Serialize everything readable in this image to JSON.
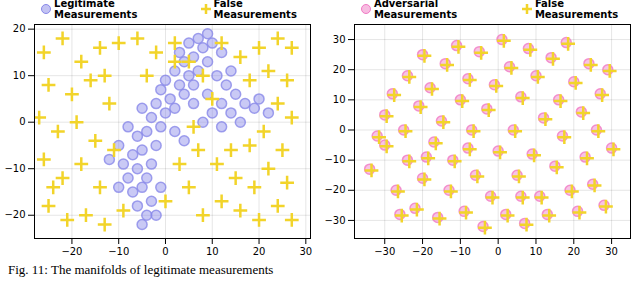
{
  "chart_data": [
    {
      "type": "scatter",
      "grid": true,
      "legend": "upper left",
      "xlim": [
        -28,
        31
      ],
      "xticks": [
        -20,
        -10,
        0,
        10,
        20,
        30
      ],
      "ylim": [
        -25,
        21
      ],
      "yticks": [
        -20,
        -10,
        0,
        10,
        20
      ],
      "series": [
        {
          "name": "Legitimate Measurements",
          "color": "#8888e8",
          "marker": "circle",
          "values": [
            [
              -5,
              -22
            ],
            [
              -4,
              -20
            ],
            [
              -6,
              -18
            ],
            [
              -3,
              -17
            ],
            [
              -7,
              -15
            ],
            [
              -5,
              -14
            ],
            [
              -8,
              -12
            ],
            [
              -4,
              -12
            ],
            [
              -6,
              -10
            ],
            [
              -9,
              -9
            ],
            [
              -3,
              -9
            ],
            [
              -7,
              -7
            ],
            [
              -5,
              -6
            ],
            [
              -10,
              -5
            ],
            [
              -2,
              -5
            ],
            [
              -6,
              -3
            ],
            [
              -4,
              -2
            ],
            [
              -8,
              -1
            ],
            [
              -1,
              -1
            ],
            [
              -3,
              1
            ],
            [
              0,
              2
            ],
            [
              -5,
              3
            ],
            [
              2,
              3
            ],
            [
              -2,
              4
            ],
            [
              1,
              5
            ],
            [
              4,
              6
            ],
            [
              -1,
              7
            ],
            [
              3,
              8
            ],
            [
              6,
              8
            ],
            [
              0,
              9
            ],
            [
              5,
              10
            ],
            [
              2,
              11
            ],
            [
              7,
              11
            ],
            [
              4,
              13
            ],
            [
              9,
              13
            ],
            [
              6,
              14
            ],
            [
              3,
              15
            ],
            [
              8,
              16
            ],
            [
              5,
              17
            ],
            [
              10,
              17
            ],
            [
              7,
              18
            ],
            [
              9,
              19
            ],
            [
              12,
              15
            ],
            [
              11,
              10
            ],
            [
              13,
              8
            ],
            [
              15,
              6
            ],
            [
              12,
              4
            ],
            [
              17,
              4
            ],
            [
              14,
              2
            ],
            [
              19,
              3
            ],
            [
              10,
              2
            ],
            [
              16,
              0
            ],
            [
              8,
              0
            ],
            [
              12,
              -1
            ],
            [
              20,
              5
            ],
            [
              22,
              2
            ],
            [
              -12,
              -8
            ],
            [
              -10,
              -14
            ],
            [
              -2,
              -20
            ],
            [
              2,
              -2
            ],
            [
              6,
              4
            ],
            [
              9,
              6
            ],
            [
              14,
              11
            ],
            [
              4,
              -4
            ],
            [
              -1,
              -14
            ]
          ]
        },
        {
          "name": "False Measurements",
          "color": "#f2d42a",
          "marker": "plus",
          "values": [
            [
              -26,
              15
            ],
            [
              -22,
              18
            ],
            [
              -18,
              13
            ],
            [
              -14,
              16
            ],
            [
              -10,
              17
            ],
            [
              -25,
              8
            ],
            [
              -20,
              6
            ],
            [
              -16,
              9
            ],
            [
              -12,
              4
            ],
            [
              -27,
              1
            ],
            [
              -23,
              -2
            ],
            [
              -19,
              0
            ],
            [
              -15,
              -4
            ],
            [
              -26,
              -8
            ],
            [
              -22,
              -12
            ],
            [
              -18,
              -9
            ],
            [
              -14,
              -14
            ],
            [
              -25,
              -18
            ],
            [
              -21,
              -21
            ],
            [
              -17,
              -20
            ],
            [
              -13,
              -22
            ],
            [
              -9,
              -19
            ],
            [
              -24,
              -14
            ],
            [
              -11,
              -6
            ],
            [
              -13,
              10
            ],
            [
              -6,
              18
            ],
            [
              -2,
              15
            ],
            [
              2,
              17
            ],
            [
              5,
              13
            ],
            [
              8,
              10
            ],
            [
              12,
              17
            ],
            [
              16,
              14
            ],
            [
              20,
              16
            ],
            [
              24,
              18
            ],
            [
              27,
              16
            ],
            [
              22,
              11
            ],
            [
              26,
              9
            ],
            [
              18,
              9
            ],
            [
              24,
              4
            ],
            [
              27,
              1
            ],
            [
              21,
              -2
            ],
            [
              25,
              -6
            ],
            [
              18,
              -5
            ],
            [
              14,
              -6
            ],
            [
              22,
              -10
            ],
            [
              26,
              -13
            ],
            [
              19,
              -14
            ],
            [
              15,
              -12
            ],
            [
              11,
              -9
            ],
            [
              24,
              -18
            ],
            [
              27,
              -21
            ],
            [
              20,
              -21
            ],
            [
              16,
              -19
            ],
            [
              12,
              -17
            ],
            [
              8,
              -20
            ],
            [
              5,
              -14
            ],
            [
              3,
              -9
            ],
            [
              0,
              -17
            ],
            [
              7,
              -6
            ],
            [
              -4,
              10
            ],
            [
              2,
              13
            ],
            [
              10,
              5
            ],
            [
              6,
              -1
            ]
          ]
        }
      ]
    },
    {
      "type": "scatter",
      "grid": true,
      "legend": "upper left",
      "xlim": [
        -38,
        35
      ],
      "xticks": [
        -30,
        -20,
        -10,
        0,
        10,
        20,
        30
      ],
      "ylim": [
        -36,
        35
      ],
      "yticks": [
        -30,
        -20,
        -10,
        0,
        10,
        20,
        30
      ],
      "series": [
        {
          "name": "Adversarial Measurements",
          "color": "#f07ac4",
          "marker": "circle",
          "values": [
            [
              -34,
              -13
            ],
            [
              -30,
              5
            ],
            [
              -30,
              -5
            ],
            [
              -28,
              12
            ],
            [
              -27,
              -20
            ],
            [
              -25,
              0
            ],
            [
              -24,
              18
            ],
            [
              -24,
              -10
            ],
            [
              -22,
              -26
            ],
            [
              -21,
              8
            ],
            [
              -20,
              25
            ],
            [
              -20,
              -16
            ],
            [
              -18,
              14
            ],
            [
              -17,
              -4
            ],
            [
              -16,
              -29
            ],
            [
              -15,
              3
            ],
            [
              -14,
              22
            ],
            [
              -13,
              -20
            ],
            [
              -12,
              -10
            ],
            [
              -11,
              28
            ],
            [
              -10,
              10
            ],
            [
              -9,
              -27
            ],
            [
              -8,
              17
            ],
            [
              -7,
              0
            ],
            [
              -6,
              -15
            ],
            [
              -5,
              26
            ],
            [
              -4,
              -32
            ],
            [
              -3,
              7
            ],
            [
              -2,
              -22
            ],
            [
              -1,
              15
            ],
            [
              0,
              -7
            ],
            [
              1,
              30
            ],
            [
              2,
              -28
            ],
            [
              3,
              21
            ],
            [
              4,
              0
            ],
            [
              5,
              -15
            ],
            [
              6,
              11
            ],
            [
              7,
              -31
            ],
            [
              8,
              27
            ],
            [
              9,
              -8
            ],
            [
              10,
              18
            ],
            [
              11,
              -22
            ],
            [
              12,
              4
            ],
            [
              13,
              -28
            ],
            [
              14,
              24
            ],
            [
              15,
              -12
            ],
            [
              16,
              10
            ],
            [
              17,
              -2
            ],
            [
              18,
              29
            ],
            [
              19,
              -20
            ],
            [
              20,
              16
            ],
            [
              21,
              -27
            ],
            [
              22,
              6
            ],
            [
              23,
              -9
            ],
            [
              24,
              22
            ],
            [
              25,
              -18
            ],
            [
              26,
              0
            ],
            [
              27,
              12
            ],
            [
              28,
              -25
            ],
            [
              29,
              20
            ],
            [
              30,
              -6
            ],
            [
              -26,
              -28
            ],
            [
              -32,
              -2
            ],
            [
              -8,
              -6
            ],
            [
              6,
              -22
            ],
            [
              -19,
              -9
            ]
          ]
        },
        {
          "name": "False Measurements",
          "color": "#f2d42a",
          "marker": "plus",
          "values": [
            [
              -33.5,
              -13.4
            ],
            [
              -29.5,
              4.6
            ],
            [
              -29.5,
              -5.4
            ],
            [
              -27.5,
              11.6
            ],
            [
              -26.5,
              -20.4
            ],
            [
              -24.5,
              -0.4
            ],
            [
              -23.5,
              17.6
            ],
            [
              -23.5,
              -10.4
            ],
            [
              -21.5,
              -26.4
            ],
            [
              -20.5,
              7.6
            ],
            [
              -19.5,
              24.6
            ],
            [
              -19.5,
              -16.4
            ],
            [
              -17.5,
              13.6
            ],
            [
              -16.5,
              -4.4
            ],
            [
              -15.5,
              -29.4
            ],
            [
              -14.5,
              2.6
            ],
            [
              -13.5,
              21.6
            ],
            [
              -12.5,
              -20.4
            ],
            [
              -11.5,
              -10.4
            ],
            [
              -10.5,
              27.6
            ],
            [
              -9.5,
              9.6
            ],
            [
              -8.5,
              -27.4
            ],
            [
              -7.5,
              16.6
            ],
            [
              -6.5,
              -0.4
            ],
            [
              -5.5,
              -15.4
            ],
            [
              -4.5,
              25.6
            ],
            [
              -3.5,
              -32.4
            ],
            [
              -2.5,
              6.6
            ],
            [
              -1.5,
              -22.4
            ],
            [
              -0.5,
              14.6
            ],
            [
              0.5,
              -7.4
            ],
            [
              1.5,
              29.6
            ],
            [
              2.5,
              -28.4
            ],
            [
              3.5,
              20.6
            ],
            [
              4.5,
              -0.4
            ],
            [
              5.5,
              -15.4
            ],
            [
              6.5,
              10.6
            ],
            [
              7.5,
              -31.4
            ],
            [
              8.5,
              26.6
            ],
            [
              9.5,
              -8.4
            ],
            [
              10.5,
              17.6
            ],
            [
              11.5,
              -22.4
            ],
            [
              12.5,
              3.6
            ],
            [
              13.5,
              -28.4
            ],
            [
              14.5,
              23.6
            ],
            [
              15.5,
              -12.4
            ],
            [
              16.5,
              9.6
            ],
            [
              17.5,
              -2.4
            ],
            [
              18.5,
              28.6
            ],
            [
              19.5,
              -20.4
            ],
            [
              20.5,
              15.6
            ],
            [
              21.5,
              -27.4
            ],
            [
              22.5,
              5.6
            ],
            [
              23.5,
              -9.4
            ],
            [
              24.5,
              21.6
            ],
            [
              25.5,
              -18.4
            ],
            [
              26.5,
              -0.4
            ],
            [
              27.5,
              11.6
            ],
            [
              28.5,
              -25.4
            ],
            [
              29.5,
              19.6
            ],
            [
              30.5,
              -6.4
            ],
            [
              -25.5,
              -28.4
            ],
            [
              -31.5,
              -2.4
            ],
            [
              -7.5,
              -6.4
            ],
            [
              6.5,
              -22.4
            ],
            [
              -18.5,
              -9.4
            ]
          ]
        }
      ]
    }
  ],
  "caption": "Fig. 11: The manifolds of legitimate measurements"
}
